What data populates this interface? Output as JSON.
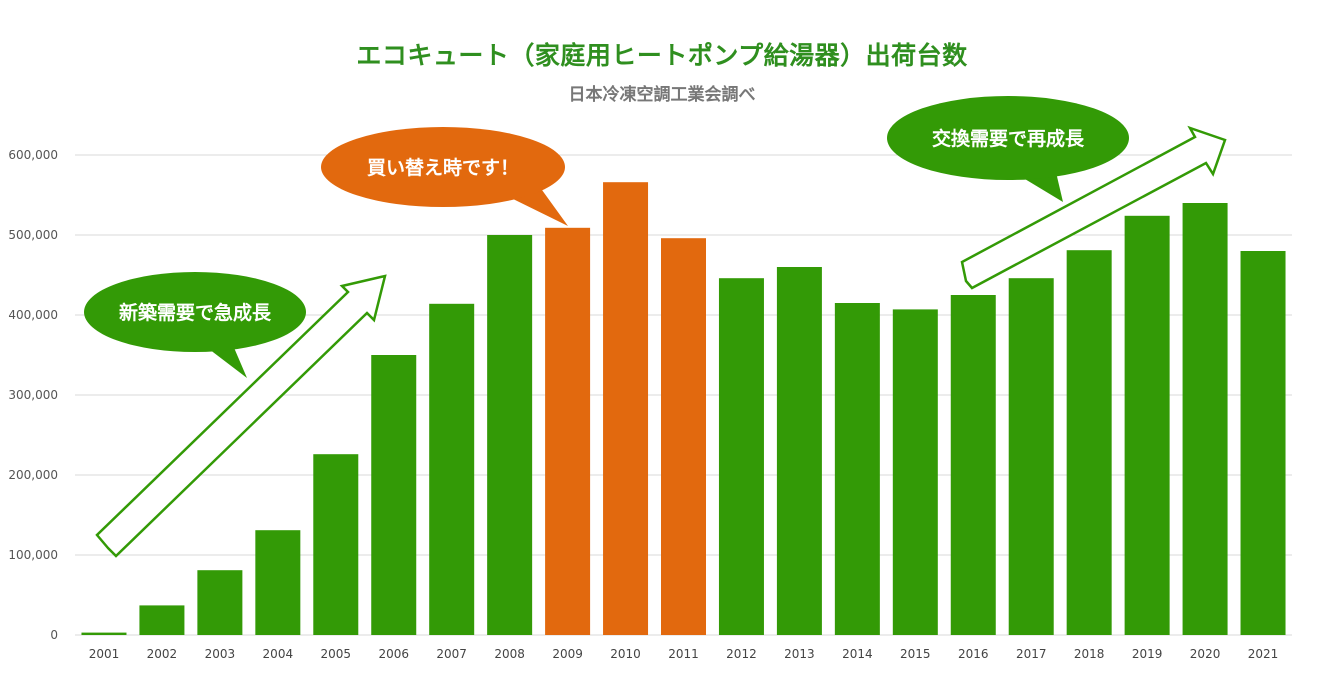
{
  "chart_data": {
    "type": "bar",
    "title": "エコキュート（家庭用ヒートポンプ給湯器）出荷台数",
    "subtitle": "日本冷凍空調工業会調べ",
    "categories": [
      "2001",
      "2002",
      "2003",
      "2004",
      "2005",
      "2006",
      "2007",
      "2008",
      "2009",
      "2010",
      "2011",
      "2012",
      "2013",
      "2014",
      "2015",
      "2016",
      "2017",
      "2018",
      "2019",
      "2020",
      "2021"
    ],
    "values": [
      3000,
      37000,
      81000,
      131000,
      226000,
      350000,
      414000,
      500000,
      509000,
      566000,
      496000,
      446000,
      460000,
      415000,
      407000,
      425000,
      446000,
      481000,
      524000,
      540000,
      480000
    ],
    "highlight_categories": [
      "2009",
      "2010",
      "2011"
    ],
    "y_ticks": [
      "0",
      "100,000",
      "200,000",
      "300,000",
      "400,000",
      "500,000",
      "600,000"
    ],
    "ylim": [
      0,
      600000
    ],
    "grid": true,
    "colors": {
      "bar": "#339a06",
      "highlight": "#e2690e",
      "grid": "#d9d9d9",
      "title": "#2f8f1f",
      "subtitle": "#777777"
    },
    "annotations": [
      {
        "text": "新築需要で急成長",
        "color": "#339a06"
      },
      {
        "text": "買い替え時です！",
        "color": "#e2690e"
      },
      {
        "text": "交換需要で再成長",
        "color": "#339a06"
      }
    ]
  }
}
